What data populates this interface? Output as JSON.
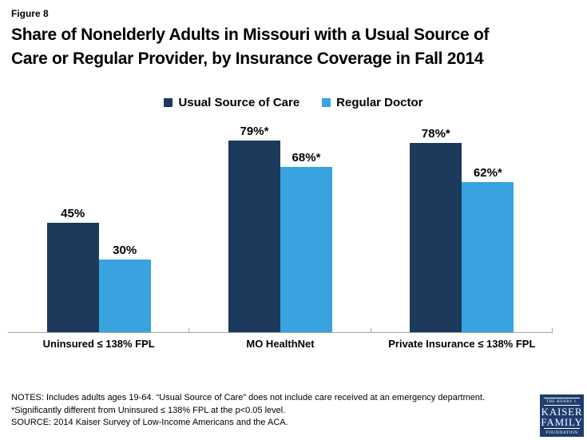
{
  "figure_label": "Figure 8",
  "title": {
    "line1": "Share of Nonelderly Adults in Missouri with a Usual Source of",
    "line2": "Care or Regular Provider, by Insurance Coverage in Fall 2014"
  },
  "chart_data": {
    "type": "bar",
    "title": "Share of Nonelderly Adults in Missouri with a Usual Source of Care or Regular Provider, by Insurance Coverage in Fall 2014",
    "categories": [
      "Uninsured ≤ 138% FPL",
      "MO HealthNet",
      "Private Insurance ≤ 138% FPL"
    ],
    "series": [
      {
        "name": "Usual Source of Care",
        "color": "#1B3A5C",
        "values": [
          45,
          79,
          78
        ],
        "labels": [
          "45%",
          "79%*",
          "78%*"
        ]
      },
      {
        "name": "Regular Doctor",
        "color": "#38A3DF",
        "values": [
          30,
          68,
          62
        ],
        "labels": [
          "30%",
          "68%*",
          "62%*"
        ]
      }
    ],
    "ylim": [
      0,
      100
    ],
    "grid": false,
    "legend_position": "top",
    "axis_color": "#A6A6A6",
    "value_label_suffix_note": "* indicates statistically significant difference"
  },
  "notes": {
    "line1": "NOTES: Includes adults ages 19-64. “Usual Source of Care” does not include care received at an emergency department.",
    "line2": "*Significantly different from Uninsured ≤ 138% FPL at the p<0.05 level.",
    "line3": "SOURCE: 2014 Kaiser Survey of Low-Income Americans and the ACA."
  },
  "logo": {
    "top": "THE HENRY J.",
    "name1": "KAISER",
    "name2": "FAMILY",
    "bottom": "FOUNDATION",
    "background": "#1E3C6E"
  }
}
